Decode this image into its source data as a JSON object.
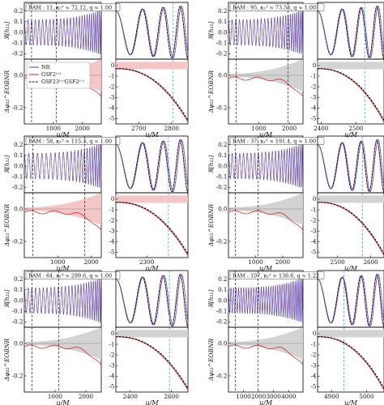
{
  "chart_data": {
    "type": "line",
    "legend": {
      "placement": "upper-left of top-left residual panel",
      "entries": [
        {
          "name": "NR",
          "color": "#3b4bd6",
          "style": "solid"
        },
        {
          "name": "GSF2⁽⁺⁾",
          "color": "#d62a2a",
          "style": "solid"
        },
        {
          "name": "GSF23⁽⁺⁾GSF2⁽⁻⁾",
          "color": "#000000",
          "style": "dashed"
        }
      ]
    },
    "colors": {
      "nr": "#3b4bd6",
      "gsf": "#d62a2a",
      "gsf23": "#000000",
      "band_red": "#f4c6c6",
      "band_gray": "#d3d3d3",
      "vline": "#2bb6d4"
    },
    "ylabel_top": "ℜ[h₂₂]",
    "ylabel_bottom": "Δφ₂₂^EOBNR",
    "xlabel": "u/M",
    "grid": false,
    "panels": [
      {
        "id": "bam11",
        "label": "BAM : 11, κ₂ᵀ ≈ 72.12, q ≈ 1.00",
        "band": "red",
        "main": {
          "xticks": [
            "1000",
            "2000"
          ],
          "xlim": [
            0,
            2650
          ],
          "xtick_values": [
            1000,
            2000
          ],
          "vlines": [
            250,
            1100
          ],
          "freq": 0.044,
          "chirp": 0.0009
        },
        "zoom": {
          "xticks": [
            "2700",
            "2800"
          ],
          "xlim": [
            2630,
            2850
          ],
          "xtick_values": [
            2700,
            2800
          ],
          "vline": 2805
        },
        "top_yticks": [
          "-0.2",
          "-0.1",
          "0.0",
          "0.1",
          "0.2"
        ],
        "top_ylim": [
          -0.25,
          0.28
        ],
        "bot_yticks": [
          "-0.2",
          "0.0"
        ],
        "bot_ylim": [
          -0.3,
          0.1
        ],
        "zoom_bot_yticks": [
          "-5",
          "-4",
          "-3",
          "-2",
          "-1",
          "0"
        ],
        "zoom_bot_ylim": [
          -5.5,
          0.6
        ]
      },
      {
        "id": "bam95",
        "label": "BAM : 95, κ₂ᵀ ≈ 73.53, q ≈ 1.00",
        "band": "gray",
        "main": {
          "xticks": [
            "1000",
            "2000"
          ],
          "xlim": [
            0,
            2450
          ],
          "xtick_values": [
            1000,
            2000
          ],
          "vlines": [
            250,
            1960
          ],
          "freq": 0.046,
          "chirp": 0.001
        },
        "zoom": {
          "xticks": [
            "2400",
            "2500"
          ],
          "xlim": [
            2390,
            2580
          ],
          "xtick_values": [
            2400,
            2500
          ],
          "vline": 2525
        },
        "top_yticks": [
          "-0.2",
          "-0.1",
          "0.0",
          "0.1",
          "0.2"
        ],
        "top_ylim": [
          -0.25,
          0.28
        ],
        "bot_yticks": [
          "-0.2",
          "0.0"
        ],
        "bot_ylim": [
          -0.3,
          0.1
        ],
        "zoom_bot_yticks": [
          "-5",
          "-4",
          "-3",
          "-2",
          "-1",
          "0"
        ],
        "zoom_bot_ylim": [
          -5.5,
          0.6
        ]
      },
      {
        "id": "bam58",
        "label": "BAM : 58, κ₂ᵀ ≈ 115.3, q ≈ 1.00",
        "band": "red",
        "main": {
          "xticks": [
            "1000",
            "2000"
          ],
          "xlim": [
            0,
            2300
          ],
          "xtick_values": [
            1000,
            2000
          ],
          "vlines": [
            250,
            1800
          ],
          "freq": 0.042,
          "chirp": 0.001
        },
        "zoom": {
          "xticks": [
            "2300"
          ],
          "xlim": [
            2240,
            2380
          ],
          "xtick_values": [
            2300
          ],
          "vline": 2342
        },
        "top_yticks": [
          "-0.2",
          "-0.1",
          "0.0",
          "0.1",
          "0.2"
        ],
        "top_ylim": [
          -0.25,
          0.28
        ],
        "bot_yticks": [
          "-0.2",
          "0.0"
        ],
        "bot_ylim": [
          -0.3,
          0.1
        ],
        "zoom_bot_yticks": [
          "-5",
          "-4",
          "-3",
          "-2",
          "-1",
          "0"
        ],
        "zoom_bot_ylim": [
          -5.5,
          0.6
        ]
      },
      {
        "id": "bam37",
        "label": "BAM : 37, κ₂ᵀ ≈ 191.4, q ≈ 1.00",
        "band": "gray",
        "main": {
          "xticks": [
            "1000",
            "2000"
          ],
          "xlim": [
            0,
            2750
          ],
          "xtick_values": [
            1000,
            2000
          ],
          "vlines": [
            250,
            1100
          ],
          "freq": 0.04,
          "chirp": 0.0008
        },
        "zoom": {
          "xticks": [
            "2500",
            "2600"
          ],
          "xlim": [
            2440,
            2640
          ],
          "xtick_values": [
            2500,
            2600
          ],
          "vline": 2575
        },
        "top_yticks": [
          "-0.2",
          "-0.1",
          "0.0",
          "0.1",
          "0.2"
        ],
        "top_ylim": [
          -0.25,
          0.28
        ],
        "bot_yticks": [
          "-0.2",
          "0.0"
        ],
        "bot_ylim": [
          -0.3,
          0.1
        ],
        "zoom_bot_yticks": [
          "-5",
          "-4",
          "-3",
          "-2",
          "-1",
          "0"
        ],
        "zoom_bot_ylim": [
          -5.5,
          0.6
        ]
      },
      {
        "id": "bam64",
        "label": "BAM : 64, κ₂ᵀ ≈ 289.6, q ≈ 1.00",
        "band": "gray",
        "main": {
          "xticks": [
            "1000",
            "2000"
          ],
          "xlim": [
            0,
            2500
          ],
          "xtick_values": [
            1000,
            2000
          ],
          "vlines": [
            250,
            1120
          ],
          "freq": 0.045,
          "chirp": 0.0009
        },
        "zoom": {
          "xticks": [
            "2400",
            "2600"
          ],
          "xlim": [
            2330,
            2680
          ],
          "xtick_values": [
            2400,
            2600
          ],
          "vline": 2590
        },
        "top_yticks": [
          "-0.2",
          "-0.1",
          "0.0",
          "0.1",
          "0.2"
        ],
        "top_ylim": [
          -0.25,
          0.28
        ],
        "bot_yticks": [
          "-0.2",
          "0.0"
        ],
        "bot_ylim": [
          -0.3,
          0.1
        ],
        "zoom_bot_yticks": [
          "-5",
          "-4",
          "-3",
          "-2",
          "-1",
          "0"
        ],
        "zoom_bot_ylim": [
          -5.5,
          0.6
        ]
      },
      {
        "id": "bam107",
        "label": "BAM : 107, κ₂ᵀ ≈ 136.6, q ≈ 1.22",
        "band": "gray",
        "main": {
          "xticks": [
            "1000",
            "2000",
            "3000",
            "4000"
          ],
          "xlim": [
            0,
            4950
          ],
          "xtick_values": [
            1000,
            2000,
            3000,
            4000
          ],
          "vlines": [
            450,
            1950
          ],
          "freq": 0.033,
          "chirp": 0.0004
        },
        "zoom": {
          "xticks": [
            "4900",
            "5000"
          ],
          "xlim": [
            4860,
            5050
          ],
          "xtick_values": [
            4900,
            5000
          ],
          "vline": 4935
        },
        "top_yticks": [
          "-0.2",
          "-0.1",
          "0.0",
          "0.1",
          "0.2"
        ],
        "top_ylim": [
          -0.25,
          0.28
        ],
        "bot_yticks": [
          "-0.2",
          "0.0"
        ],
        "bot_ylim": [
          -0.3,
          0.1
        ],
        "zoom_bot_yticks": [
          "-5",
          "-4",
          "-3",
          "-2",
          "-1",
          "0"
        ],
        "zoom_bot_ylim": [
          -5.5,
          0.6
        ]
      }
    ]
  }
}
